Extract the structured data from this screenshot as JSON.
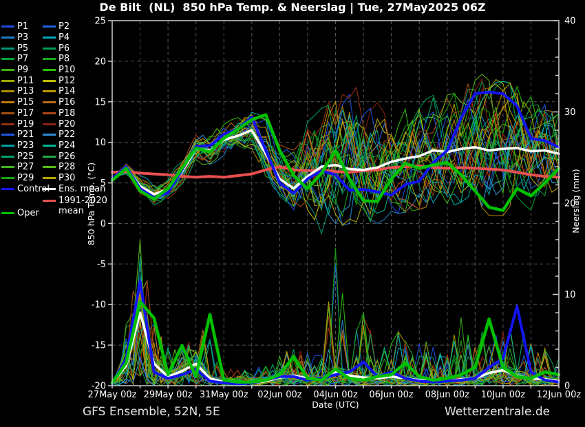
{
  "footer": {
    "left": "GFS Ensemble, 52N, 5E",
    "right": "Wetterzentrale.de"
  },
  "colors": {
    "background": "#000000",
    "axis": "#cfcfcf",
    "grid": "#565656",
    "control": "#1414f0",
    "ens_mean": "#ffffff",
    "oper": "#00c000",
    "clim_mean": "#e85050"
  },
  "legend": {
    "member_labels": [
      "P1",
      "P2",
      "P3",
      "P4",
      "P5",
      "P6",
      "P7",
      "P8",
      "P9",
      "P10",
      "P11",
      "P12",
      "P13",
      "P14",
      "P15",
      "P16",
      "P17",
      "P18",
      "P19",
      "P20",
      "P21",
      "P22",
      "P23",
      "P24",
      "P25",
      "P26",
      "P27",
      "P28",
      "P29",
      "P30"
    ],
    "control_label": "Control",
    "ens_mean_label": "Ens. mean",
    "oper_label": "Oper",
    "clim_label_line1": "1991-2020",
    "clim_label_line2": "mean"
  },
  "chart_data": {
    "type": "line",
    "title": "De Bilt  (NL)  850 hPa Temp. & Neerslag | Tue, 27May2025 06Z",
    "x_axis": {
      "label": "Date (UTC)",
      "tick_labels": [
        "27May 00z",
        "29May 00z",
        "31May 00z",
        "02Jun 00z",
        "04Jun 00z",
        "06Jun 00z",
        "08Jun 00z",
        "10Jun 00z",
        "12Jun 00z"
      ],
      "span_days": 16,
      "grid_step_days": 1,
      "label_step_days": 2
    },
    "y_left": {
      "label": "850 hPa Temp. (°C)",
      "min": -20,
      "max": 25,
      "tick_step": 5,
      "tick_labels": [
        "25",
        "20",
        "15",
        "10",
        "5",
        "0",
        "-5",
        "-10",
        "-15",
        "-20"
      ]
    },
    "y_right": {
      "label": "Neerslag (mm)",
      "min": 0,
      "max": 40,
      "tick_step": 10,
      "minor_tick_step": 2,
      "tick_labels": [
        "40",
        "30",
        "20",
        "10",
        "0"
      ]
    },
    "step_hours": 12,
    "series": [
      {
        "name": "1991-2020 mean",
        "axis": "temp",
        "color": "#e85050",
        "width": 4,
        "values": [
          6.3,
          6.4,
          6.2,
          6.1,
          6.0,
          5.8,
          5.7,
          5.8,
          5.7,
          5.9,
          6.1,
          6.6,
          7.0,
          6.6,
          6.5,
          6.6,
          6.4,
          6.3,
          6.5,
          6.6,
          6.9,
          7.0,
          7.1,
          6.9,
          6.8,
          6.9,
          6.8,
          6.7,
          6.6,
          6.3,
          6.0,
          5.8,
          5.7
        ]
      },
      {
        "name": "Ens. mean",
        "axis": "temp",
        "color": "#ffffff",
        "width": 3.5,
        "values": [
          5.5,
          6.9,
          4.6,
          3.6,
          4.2,
          6.4,
          9.2,
          9.0,
          10.3,
          10.8,
          11.5,
          8.6,
          5.5,
          4.3,
          5.8,
          7.0,
          7.2,
          6.7,
          6.6,
          6.9,
          7.6,
          8.0,
          8.3,
          9.0,
          8.8,
          9.2,
          9.4,
          9.0,
          9.2,
          9.3,
          8.9,
          9.0,
          8.6
        ]
      },
      {
        "name": "Ens. mean precip",
        "axis": "precip",
        "color": "#ffffff",
        "width": 3.5,
        "values": [
          0.3,
          2.2,
          8.0,
          2.4,
          1.0,
          1.6,
          2.4,
          0.8,
          0.4,
          0.3,
          0.3,
          0.5,
          0.9,
          1.1,
          0.8,
          0.7,
          1.5,
          1.1,
          0.9,
          0.8,
          1.0,
          0.8,
          0.6,
          0.5,
          0.5,
          0.7,
          0.8,
          1.4,
          1.7,
          1.1,
          0.8,
          0.7,
          0.5
        ]
      },
      {
        "name": "Control",
        "axis": "temp",
        "color": "#1414f0",
        "width": 4,
        "values": [
          5.5,
          7.0,
          4.3,
          3.2,
          3.8,
          6.6,
          9.5,
          9.6,
          11.0,
          11.6,
          13.1,
          9.0,
          5.0,
          3.7,
          5.5,
          6.5,
          6.0,
          4.1,
          4.2,
          3.9,
          3.5,
          4.8,
          5.2,
          7.5,
          9.0,
          13.0,
          16.0,
          16.2,
          16.0,
          14.5,
          10.5,
          10.2,
          9.4
        ]
      },
      {
        "name": "Control precip",
        "axis": "precip",
        "color": "#1414f0",
        "width": 4,
        "values": [
          0.2,
          3.0,
          11.4,
          1.5,
          0.8,
          1.2,
          1.8,
          0.5,
          0.3,
          0.2,
          0.3,
          0.6,
          1.0,
          1.0,
          0.6,
          0.8,
          1.2,
          1.5,
          2.6,
          1.0,
          1.5,
          0.8,
          0.5,
          0.4,
          0.5,
          0.6,
          0.8,
          2.0,
          3.0,
          8.7,
          1.5,
          0.6,
          0.4
        ]
      },
      {
        "name": "Oper",
        "axis": "temp",
        "color": "#00c000",
        "width": 4.5,
        "values": [
          5.3,
          6.8,
          4.0,
          3.0,
          4.3,
          6.8,
          9.3,
          8.8,
          10.5,
          11.6,
          12.8,
          13.4,
          9.0,
          5.9,
          4.3,
          6.2,
          9.0,
          5.5,
          2.8,
          2.7,
          5.5,
          7.4,
          6.8,
          7.2,
          7.5,
          6.0,
          4.0,
          2.0,
          1.6,
          4.3,
          3.4,
          5.0,
          6.8
        ]
      },
      {
        "name": "Oper precip",
        "axis": "precip",
        "color": "#00c000",
        "width": 4.5,
        "values": [
          0.3,
          2.5,
          9.2,
          7.4,
          1.2,
          4.4,
          1.0,
          7.8,
          0.6,
          0.4,
          0.4,
          0.6,
          1.2,
          3.2,
          0.8,
          0.6,
          1.8,
          0.8,
          0.6,
          1.0,
          1.2,
          2.5,
          1.0,
          0.6,
          0.8,
          1.2,
          2.0,
          7.3,
          2.0,
          1.0,
          0.8,
          1.5,
          1.2
        ]
      }
    ],
    "ensemble": {
      "member_colors": [
        "#1f4fe0",
        "#2263e8",
        "#1e7fc8",
        "#00aac0",
        "#00997a",
        "#00a055",
        "#00a232",
        "#1ca81e",
        "#3cb014",
        "#28c00a",
        "#a0a800",
        "#c0bc00",
        "#b08c00",
        "#c09a00",
        "#c07c10",
        "#bc6c16",
        "#aa5014",
        "#b04614",
        "#9a3010",
        "#8a2410",
        "#2156e4",
        "#2e8ed8",
        "#00a0a4",
        "#00b89c",
        "#00a464",
        "#22aa46",
        "#44b022",
        "#58b816",
        "#14a410",
        "#b2a400"
      ],
      "temp_envelope_min": [
        5.2,
        6.0,
        3.6,
        2.2,
        2.6,
        4.8,
        7.2,
        7.0,
        8.4,
        8.8,
        9.2,
        5.8,
        3.4,
        1.6,
        -1.0,
        -3.2,
        -1.0,
        0.0,
        0.4,
        0.0,
        0.6,
        0.8,
        1.4,
        2.0,
        2.0,
        2.6,
        2.0,
        1.0,
        0.6,
        1.0,
        1.4,
        2.0,
        2.6
      ],
      "temp_envelope_max": [
        5.8,
        7.8,
        6.2,
        5.2,
        6.0,
        8.0,
        11.0,
        11.4,
        12.6,
        13.4,
        14.2,
        13.6,
        11.0,
        10.0,
        13.0,
        14.2,
        16.5,
        19.8,
        17.5,
        15.8,
        14.0,
        14.2,
        15.2,
        16.2,
        17.2,
        19.0,
        20.0,
        19.0,
        18.0,
        17.5,
        17.0,
        16.5,
        16.0
      ],
      "precip_envelope_max": [
        1.0,
        8.0,
        22.5,
        9.0,
        5.0,
        6.0,
        7.0,
        8.0,
        3.0,
        2.0,
        2.0,
        3.0,
        4.0,
        6.0,
        5.0,
        4.0,
        19.5,
        8.0,
        9.5,
        6.0,
        8.0,
        6.0,
        7.0,
        5.0,
        5.0,
        9.0,
        6.0,
        8.0,
        7.0,
        8.5,
        6.0,
        5.0,
        4.0
      ]
    }
  }
}
